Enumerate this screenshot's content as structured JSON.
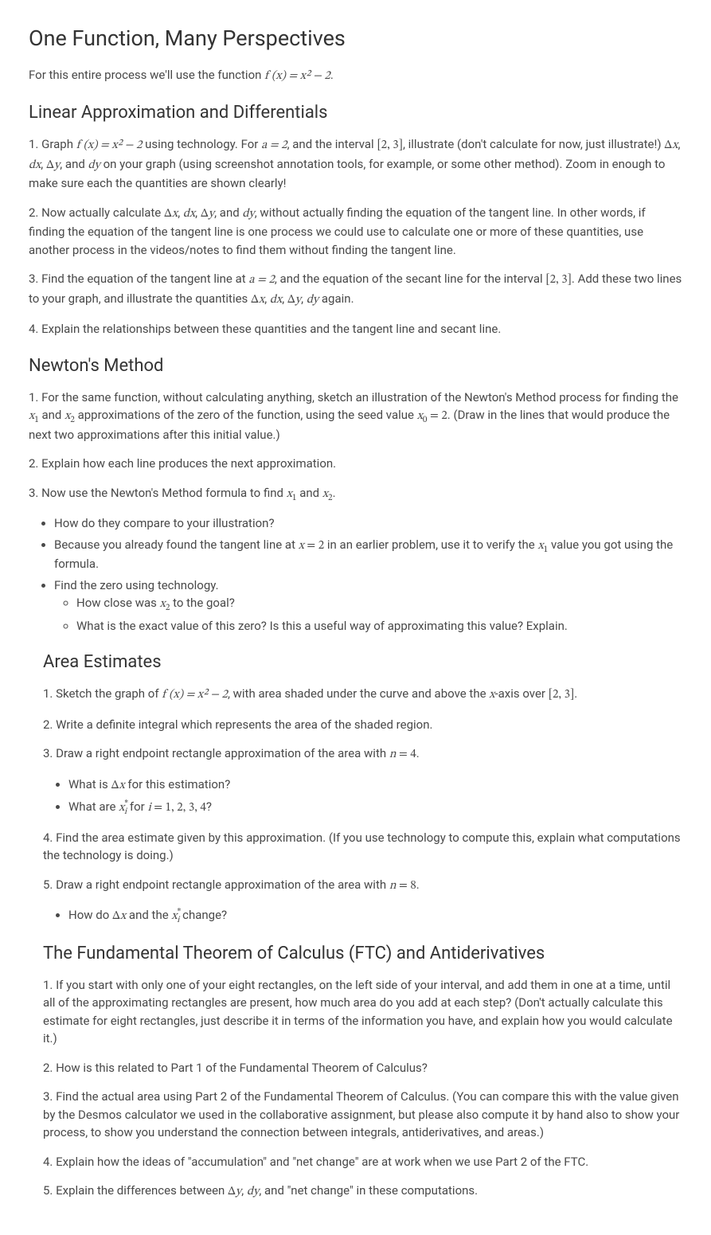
{
  "title": "One Function, Many Perspectives",
  "intro_pre": "For this entire process we'll use the function ",
  "intro_math": "f (x) = x² − 2",
  "intro_post": ".",
  "sections": {
    "linear": {
      "heading": "Linear Approximation and Differentials",
      "items": {
        "p1_a": "1. Graph ",
        "p1_m1": "f (x) = x² − 2",
        "p1_b": " using technology. For ",
        "p1_m2": "a = 2",
        "p1_c": ", and the interval ",
        "p1_m3": "[2,  3]",
        "p1_d": ", illustrate (don't calculate for now, just illustrate!) ",
        "p1_m4": "Δx",
        "p1_e": ", ",
        "p1_m5": "dx",
        "p1_f": ", ",
        "p1_m6": "Δy",
        "p1_g": ", and ",
        "p1_m7": "dy",
        "p1_h": " on your graph (using screenshot annotation tools, for example, or some other method). Zoom in enough to make sure each the quantities are shown clearly!",
        "p2_a": "2. Now actually calculate ",
        "p2_m1": "Δx",
        "p2_b": ", ",
        "p2_m2": "dx",
        "p2_c": ", ",
        "p2_m3": "Δy",
        "p2_d": ", and ",
        "p2_m4": "dy",
        "p2_e": ", without actually finding the equation of the tangent line. In other words, if finding the equation of the tangent line is one process we could use to calculate one or more of these quantities, use another process in the videos/notes to find them without finding the tangent line.",
        "p3_a": "3. Find the equation of the tangent line at ",
        "p3_m1": "a = 2",
        "p3_b": ", and the equation of the secant line for the interval ",
        "p3_m2": "[2,  3]",
        "p3_c": ". Add these two lines to your graph, and illustrate the quantities ",
        "p3_m3": "Δx",
        "p3_d": ", ",
        "p3_m4": "dx",
        "p3_e": ", ",
        "p3_m5": "Δy",
        "p3_f": ", ",
        "p3_m6": "dy",
        "p3_g": " again.",
        "p4": "4. Explain the relationships between these quantities and the tangent line and secant line."
      }
    },
    "newton": {
      "heading": "Newton's Method",
      "items": {
        "p1_a": "1. For the same function, without calculating anything, sketch an illustration of the Newton's Method process for finding the ",
        "p1_m1": "x₁",
        "p1_b": " and ",
        "p1_m2": "x₂",
        "p1_c": " approximations of the zero of the function, using the seed value ",
        "p1_m3": "x₀ = 2",
        "p1_d": ". (Draw in the lines that would produce the next two approximations after this initial value.)",
        "p2": "2. Explain how each line produces the next approximation.",
        "p3_a": "3. Now use the Newton's Method formula to find ",
        "p3_m1": "x₁",
        "p3_b": " and ",
        "p3_m2": "x₂",
        "p3_c": ".",
        "bullets": {
          "b1": "How do they compare to your illustration?",
          "b2_a": "Because you already found the tangent line at ",
          "b2_m1": "x = 2",
          "b2_b": " in an earlier problem, use it to verify the ",
          "b2_m2": "x₁",
          "b2_c": " value you got using the formula.",
          "b3": "Find the zero using technology.",
          "b3sub": {
            "s1_a": "How close was ",
            "s1_m1": "x₂",
            "s1_b": " to the goal?",
            "s2": "What is the exact value of this zero? Is this a useful way of approximating this value? Explain."
          }
        }
      }
    },
    "area": {
      "heading": "Area Estimates",
      "items": {
        "p1_a": "1. Sketch the graph of ",
        "p1_m1": "f (x) = x² − 2",
        "p1_b": ", with area shaded under the curve and above the ",
        "p1_m2": "x",
        "p1_c": "-axis over ",
        "p1_m3": "[2,  3]",
        "p1_d": ".",
        "p2": "2. Write a definite integral which represents the area of the shaded region.",
        "p3_a": "3. Draw a right endpoint rectangle approximation of the area with ",
        "p3_m1": "n = 4",
        "p3_b": ".",
        "bullets1": {
          "b1_a": "What is ",
          "b1_m1": "Δx",
          "b1_b": " for this estimation?",
          "b2_a": "What are ",
          "b2_m1": "xᵢ*",
          "b2_b": " for ",
          "b2_m2": "i = 1, 2, 3, 4",
          "b2_c": "?"
        },
        "p4": "4. Find the area estimate given by this approximation. (If you use technology to compute this, explain what computations the technology is doing.)",
        "p5_a": "5. Draw a right endpoint rectangle approximation of the area with ",
        "p5_m1": "n = 8",
        "p5_b": ".",
        "bullets2": {
          "b1_a": "How do ",
          "b1_m1": "Δx",
          "b1_b": " and the ",
          "b1_m2": "xᵢ*",
          "b1_c": " change?"
        }
      }
    },
    "ftc": {
      "heading": "The Fundamental Theorem of Calculus (FTC) and Antiderivatives",
      "items": {
        "p1": "1. If you start with only one of your eight rectangles, on the left side of your interval, and add them in one at a time, until all of the approximating rectangles are present, how much area do you add at each step? (Don't actually calculate this estimate for eight rectangles, just describe it in terms of the information you have, and explain how you would calculate it.)",
        "p2": "2. How is this related to Part 1 of the Fundamental Theorem of Calculus?",
        "p3": "3. Find the actual area using Part 2 of the Fundamental Theorem of Calculus. (You can compare this with the value given by the Desmos calculator we used in the collaborative assignment, but please also compute it by hand also to show your process, to show you understand the connection between integrals, antiderivatives, and areas.)",
        "p4": "4. Explain how the ideas of \"accumulation\" and \"net change\" are at work when we use Part 2 of the FTC.",
        "p5_a": "5. Explain the differences between ",
        "p5_m1": "Δy",
        "p5_b": ", ",
        "p5_m2": "dy",
        "p5_c": ", and \"net change\" in these computations."
      }
    }
  }
}
